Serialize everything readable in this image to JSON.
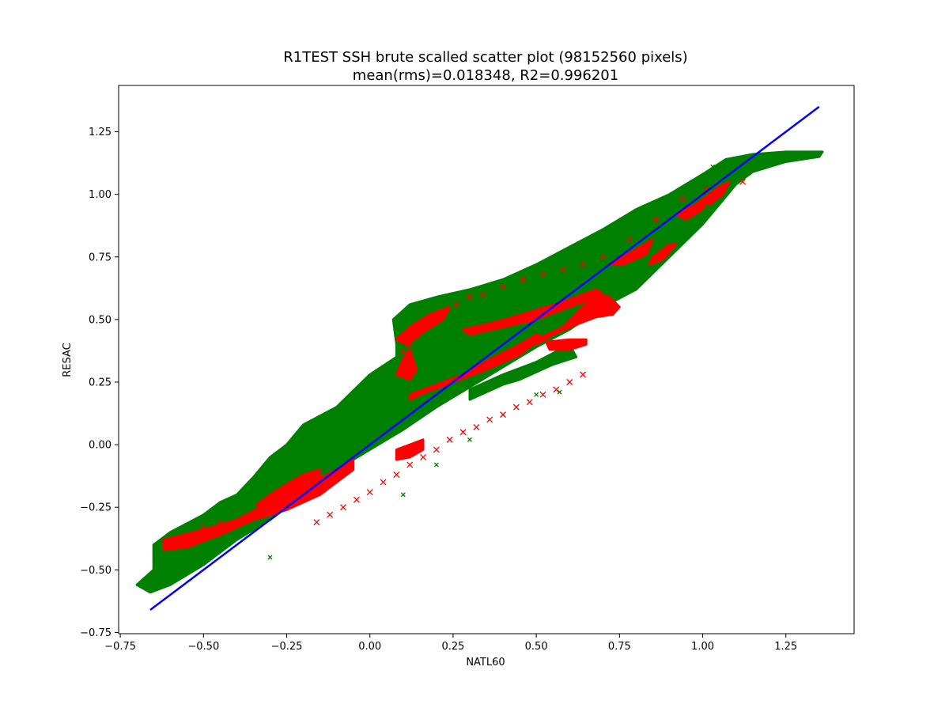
{
  "chart_data": {
    "type": "scatter",
    "title": "R1TEST SSH brute scalled scatter plot (98152560 pixels)",
    "subtitle": "mean(rms)=0.018348, R2=0.996201",
    "xlabel": "NATL60",
    "ylabel": "RESAC",
    "xlim": [
      -0.755,
      1.455
    ],
    "ylim": [
      -0.755,
      1.435
    ],
    "grid": false,
    "xticks": [
      {
        "v": -0.75,
        "label": "−0.75"
      },
      {
        "v": -0.5,
        "label": "−0.50"
      },
      {
        "v": -0.25,
        "label": "−0.25"
      },
      {
        "v": 0.0,
        "label": "0.00"
      },
      {
        "v": 0.25,
        "label": "0.25"
      },
      {
        "v": 0.5,
        "label": "0.50"
      },
      {
        "v": 0.75,
        "label": "0.75"
      },
      {
        "v": 1.0,
        "label": "1.00"
      },
      {
        "v": 1.25,
        "label": "1.25"
      }
    ],
    "yticks": [
      {
        "v": -0.75,
        "label": "−0.75"
      },
      {
        "v": -0.5,
        "label": "−0.50"
      },
      {
        "v": -0.25,
        "label": "−0.25"
      },
      {
        "v": 0.0,
        "label": "0.00"
      },
      {
        "v": 0.25,
        "label": "0.25"
      },
      {
        "v": 0.5,
        "label": "0.50"
      },
      {
        "v": 0.75,
        "label": "0.75"
      },
      {
        "v": 1.0,
        "label": "1.00"
      },
      {
        "v": 1.25,
        "label": "1.25"
      }
    ],
    "series": [
      {
        "color": "#008000",
        "marker": "x",
        "regions": [
          {
            "polygon": [
              [
                -0.66,
                -0.59
              ],
              [
                -0.6,
                -0.56
              ],
              [
                -0.5,
                -0.48
              ],
              [
                -0.4,
                -0.38
              ],
              [
                -0.3,
                -0.3
              ],
              [
                -0.2,
                -0.2
              ],
              [
                -0.1,
                -0.1
              ],
              [
                0.0,
                -0.02
              ],
              [
                0.1,
                0.06
              ],
              [
                0.2,
                0.15
              ],
              [
                0.3,
                0.23
              ],
              [
                0.4,
                0.31
              ],
              [
                0.5,
                0.39
              ],
              [
                0.6,
                0.46
              ],
              [
                0.7,
                0.55
              ],
              [
                0.8,
                0.62
              ],
              [
                0.9,
                0.75
              ],
              [
                1.0,
                0.88
              ],
              [
                1.05,
                0.96
              ],
              [
                1.1,
                1.04
              ],
              [
                1.15,
                1.09
              ],
              [
                1.25,
                1.13
              ],
              [
                1.35,
                1.15
              ],
              [
                1.36,
                1.17
              ],
              [
                1.25,
                1.17
              ],
              [
                1.15,
                1.16
              ],
              [
                1.07,
                1.14
              ],
              [
                1.0,
                1.08
              ],
              [
                0.9,
                1.0
              ],
              [
                0.8,
                0.94
              ],
              [
                0.7,
                0.86
              ],
              [
                0.6,
                0.79
              ],
              [
                0.5,
                0.72
              ],
              [
                0.4,
                0.66
              ],
              [
                0.3,
                0.62
              ],
              [
                0.2,
                0.59
              ],
              [
                0.12,
                0.56
              ],
              [
                0.07,
                0.5
              ],
              [
                0.08,
                0.4
              ],
              [
                0.08,
                0.35
              ],
              [
                0.0,
                0.28
              ],
              [
                -0.1,
                0.15
              ],
              [
                -0.2,
                0.08
              ],
              [
                -0.25,
                0.0
              ],
              [
                -0.3,
                -0.05
              ],
              [
                -0.35,
                -0.13
              ],
              [
                -0.4,
                -0.2
              ],
              [
                -0.45,
                -0.23
              ],
              [
                -0.5,
                -0.28
              ],
              [
                -0.6,
                -0.35
              ],
              [
                -0.65,
                -0.4
              ],
              [
                -0.65,
                -0.5
              ],
              [
                -0.7,
                -0.56
              ]
            ]
          },
          {
            "polygon": [
              [
                0.3,
                0.18
              ],
              [
                0.4,
                0.24
              ],
              [
                0.45,
                0.26
              ],
              [
                0.55,
                0.32
              ],
              [
                0.62,
                0.35
              ],
              [
                0.6,
                0.4
              ],
              [
                0.5,
                0.33
              ],
              [
                0.4,
                0.28
              ],
              [
                0.3,
                0.22
              ]
            ]
          }
        ],
        "points": [
          [
            0.57,
            0.21
          ],
          [
            -0.3,
            -0.45
          ],
          [
            0.1,
            -0.2
          ],
          [
            0.2,
            -0.08
          ],
          [
            0.3,
            0.02
          ],
          [
            0.4,
            0.12
          ],
          [
            0.5,
            0.2
          ],
          [
            1.03,
            1.11
          ],
          [
            0.85,
            0.96
          ]
        ]
      },
      {
        "color": "#ff0000",
        "marker": "x",
        "regions": [
          {
            "polygon": [
              [
                -0.62,
                -0.38
              ],
              [
                -0.5,
                -0.34
              ],
              [
                -0.4,
                -0.3
              ],
              [
                -0.3,
                -0.23
              ],
              [
                -0.2,
                -0.17
              ],
              [
                -0.1,
                -0.1
              ],
              [
                -0.05,
                -0.06
              ],
              [
                -0.05,
                -0.1
              ],
              [
                -0.15,
                -0.2
              ],
              [
                -0.25,
                -0.26
              ],
              [
                -0.35,
                -0.3
              ],
              [
                -0.45,
                -0.36
              ],
              [
                -0.55,
                -0.41
              ],
              [
                -0.62,
                -0.42
              ]
            ]
          },
          {
            "polygon": [
              [
                -0.34,
                -0.24
              ],
              [
                -0.3,
                -0.2
              ],
              [
                -0.24,
                -0.15
              ],
              [
                -0.2,
                -0.12
              ],
              [
                -0.15,
                -0.1
              ],
              [
                -0.15,
                -0.17
              ],
              [
                -0.2,
                -0.2
              ],
              [
                -0.26,
                -0.23
              ],
              [
                -0.32,
                -0.27
              ]
            ]
          },
          {
            "polygon": [
              [
                0.12,
                0.2
              ],
              [
                0.2,
                0.24
              ],
              [
                0.28,
                0.28
              ],
              [
                0.36,
                0.34
              ],
              [
                0.45,
                0.4
              ],
              [
                0.5,
                0.44
              ],
              [
                0.52,
                0.43
              ],
              [
                0.45,
                0.36
              ],
              [
                0.35,
                0.3
              ],
              [
                0.25,
                0.25
              ],
              [
                0.15,
                0.2
              ],
              [
                0.12,
                0.18
              ]
            ]
          },
          {
            "polygon": [
              [
                0.28,
                0.46
              ],
              [
                0.38,
                0.49
              ],
              [
                0.48,
                0.53
              ],
              [
                0.58,
                0.57
              ],
              [
                0.68,
                0.62
              ],
              [
                0.7,
                0.6
              ],
              [
                0.6,
                0.55
              ],
              [
                0.5,
                0.5
              ],
              [
                0.4,
                0.47
              ],
              [
                0.3,
                0.44
              ]
            ]
          },
          {
            "polygon": [
              [
                0.5,
                0.42
              ],
              [
                0.58,
                0.47
              ],
              [
                0.64,
                0.55
              ],
              [
                0.68,
                0.6
              ],
              [
                0.72,
                0.59
              ],
              [
                0.75,
                0.55
              ],
              [
                0.73,
                0.52
              ],
              [
                0.68,
                0.51
              ],
              [
                0.62,
                0.48
              ],
              [
                0.55,
                0.44
              ],
              [
                0.5,
                0.4
              ]
            ]
          },
          {
            "polygon": [
              [
                0.08,
                0.42
              ],
              [
                0.12,
                0.47
              ],
              [
                0.18,
                0.52
              ],
              [
                0.24,
                0.55
              ],
              [
                0.22,
                0.5
              ],
              [
                0.16,
                0.45
              ],
              [
                0.11,
                0.4
              ]
            ]
          },
          {
            "polygon": [
              [
                0.08,
                0.28
              ],
              [
                0.1,
                0.34
              ],
              [
                0.12,
                0.38
              ],
              [
                0.14,
                0.3
              ],
              [
                0.12,
                0.26
              ]
            ]
          },
          {
            "polygon": [
              [
                0.53,
                0.41
              ],
              [
                0.6,
                0.42
              ],
              [
                0.65,
                0.42
              ],
              [
                0.65,
                0.4
              ],
              [
                0.6,
                0.38
              ],
              [
                0.54,
                0.38
              ]
            ]
          },
          {
            "polygon": [
              [
                0.08,
                -0.02
              ],
              [
                0.12,
                0.0
              ],
              [
                0.16,
                0.02
              ],
              [
                0.16,
                -0.02
              ],
              [
                0.12,
                -0.05
              ],
              [
                0.08,
                -0.06
              ]
            ]
          },
          {
            "polygon": [
              [
                0.85,
                0.75
              ],
              [
                0.9,
                0.8
              ],
              [
                0.92,
                0.8
              ],
              [
                0.88,
                0.74
              ],
              [
                0.84,
                0.72
              ]
            ]
          },
          {
            "polygon": [
              [
                0.92,
                0.92
              ],
              [
                0.98,
                0.96
              ],
              [
                1.02,
                1.0
              ],
              [
                1.0,
                0.94
              ],
              [
                0.95,
                0.9
              ]
            ]
          },
          {
            "polygon": [
              [
                1.0,
                0.98
              ],
              [
                1.05,
                1.03
              ],
              [
                1.08,
                1.05
              ],
              [
                1.06,
                1.0
              ],
              [
                1.02,
                0.96
              ]
            ]
          },
          {
            "polygon": [
              [
                0.72,
                0.72
              ],
              [
                0.8,
                0.78
              ],
              [
                0.85,
                0.82
              ],
              [
                0.83,
                0.76
              ],
              [
                0.76,
                0.72
              ]
            ]
          }
        ],
        "points": [
          [
            0.64,
            0.28
          ],
          [
            0.6,
            0.25
          ],
          [
            0.56,
            0.22
          ],
          [
            0.52,
            0.2
          ],
          [
            0.48,
            0.17
          ],
          [
            0.44,
            0.15
          ],
          [
            0.4,
            0.12
          ],
          [
            0.36,
            0.1
          ],
          [
            0.32,
            0.07
          ],
          [
            0.28,
            0.05
          ],
          [
            0.24,
            0.02
          ],
          [
            0.2,
            -0.02
          ],
          [
            0.16,
            -0.05
          ],
          [
            0.12,
            -0.08
          ],
          [
            0.08,
            -0.12
          ],
          [
            0.04,
            -0.15
          ],
          [
            0.0,
            -0.19
          ],
          [
            -0.04,
            -0.22
          ],
          [
            -0.08,
            -0.25
          ],
          [
            -0.12,
            -0.28
          ],
          [
            -0.16,
            -0.31
          ],
          [
            0.1,
            0.37
          ],
          [
            0.12,
            0.4
          ],
          [
            0.14,
            0.43
          ],
          [
            0.2,
            0.5
          ],
          [
            0.26,
            0.56
          ],
          [
            0.3,
            0.59
          ],
          [
            0.34,
            0.6
          ],
          [
            0.4,
            0.63
          ],
          [
            0.46,
            0.66
          ],
          [
            0.52,
            0.68
          ],
          [
            0.58,
            0.7
          ],
          [
            0.64,
            0.72
          ],
          [
            0.7,
            0.75
          ],
          [
            0.78,
            0.82
          ],
          [
            0.86,
            0.9
          ],
          [
            0.94,
            0.98
          ],
          [
            1.01,
            1.02
          ],
          [
            1.12,
            1.05
          ],
          [
            -0.6,
            -0.39
          ],
          [
            -0.55,
            -0.36
          ],
          [
            -0.5,
            -0.33
          ],
          [
            -0.45,
            -0.31
          ]
        ]
      },
      {
        "color": "#0000ff",
        "marker": "line",
        "x": [
          -0.66,
          1.35
        ],
        "y": [
          -0.66,
          1.35
        ]
      }
    ]
  }
}
